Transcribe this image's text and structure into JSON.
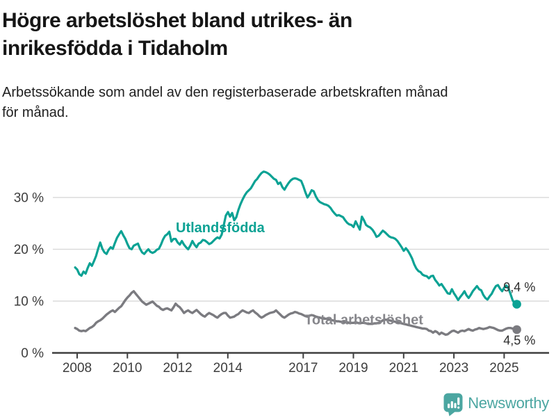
{
  "chart_data": {
    "type": "line",
    "title": "Högre arbetslöshet bland utrikes- än\ninrikesfödda i Tidaholm",
    "subtitle": "Arbetssökande som andel av den registerbaserade arbetskraften månad\nför månad.",
    "x_tick_years": [
      2008,
      2010,
      2012,
      2014,
      2017,
      2019,
      2021,
      2023,
      2025
    ],
    "y_ticks": [
      0,
      10,
      20,
      30
    ],
    "y_tick_suffix": " %",
    "ylim": [
      0,
      37.5
    ],
    "xlim": [
      2007.0,
      2026.8
    ],
    "grid": "horizontal-only",
    "legend": "inline-labels-on-lines",
    "colors": {
      "grid": "#DBDBDB",
      "axis": "#3F3F3F",
      "tick_text": "#3D3D3D",
      "value_text": "#2C2C2C"
    },
    "series": [
      {
        "name": "Utlandsfödda",
        "color": "#0BA294",
        "label_color": "#0BA294",
        "stroke_width": 3.2,
        "start_year": 2007.92,
        "points_per_year": 12,
        "end_value": 9.4,
        "name_label": {
          "year": 2011.93,
          "pct": 23.3
        },
        "value_label": {
          "text": "9,4 %",
          "year": 2024.97,
          "pct": 11.9
        },
        "values": [
          16.5,
          16.1,
          15.2,
          14.9,
          15.7,
          15.3,
          16.4,
          17.3,
          16.8,
          17.7,
          18.7,
          20.1,
          21.3,
          20.1,
          19.4,
          19.1,
          19.9,
          20.4,
          20.1,
          21.2,
          22.2,
          22.9,
          23.5,
          22.7,
          22.0,
          21.0,
          20.2,
          20.0,
          20.7,
          20.9,
          21.1,
          20.1,
          19.4,
          19.1,
          19.6,
          20.0,
          19.5,
          19.3,
          19.5,
          19.9,
          20.1,
          20.9,
          21.9,
          22.6,
          22.9,
          23.4,
          21.5,
          22.0,
          22.0,
          21.3,
          20.9,
          21.6,
          20.9,
          20.4,
          20.0,
          20.7,
          21.6,
          20.9,
          20.4,
          21.1,
          21.3,
          21.8,
          21.7,
          21.4,
          21.0,
          21.2,
          21.6,
          22.0,
          22.3,
          22.1,
          22.8,
          24.6,
          26.5,
          27.2,
          26.3,
          27.0,
          25.6,
          26.2,
          27.6,
          28.7,
          29.6,
          30.4,
          31.0,
          31.4,
          31.8,
          32.5,
          33.2,
          33.6,
          34.2,
          34.7,
          35.0,
          34.9,
          34.7,
          34.4,
          34.0,
          33.6,
          33.4,
          32.6,
          32.9,
          32.0,
          31.5,
          32.2,
          32.8,
          33.3,
          33.6,
          33.7,
          33.6,
          33.4,
          33.2,
          32.2,
          31.0,
          30.0,
          30.6,
          31.4,
          31.2,
          30.2,
          29.5,
          29.1,
          28.9,
          28.7,
          28.6,
          28.4,
          28.0,
          27.4,
          26.9,
          26.5,
          26.6,
          26.4,
          26.2,
          25.6,
          25.1,
          24.8,
          24.7,
          24.3,
          25.4,
          24.6,
          23.8,
          26.3,
          25.6,
          24.7,
          24.4,
          24.2,
          23.8,
          23.2,
          22.4,
          22.6,
          23.1,
          23.6,
          23.3,
          22.9,
          22.5,
          22.3,
          22.2,
          22.0,
          21.6,
          21.0,
          20.4,
          19.7,
          20.2,
          19.7,
          19.0,
          18.2,
          17.1,
          16.3,
          15.8,
          15.6,
          15.1,
          14.9,
          14.8,
          14.4,
          14.8,
          14.9,
          14.1,
          13.6,
          13.0,
          13.3,
          12.7,
          12.1,
          11.5,
          11.4,
          12.3,
          11.5,
          10.9,
          10.2,
          10.8,
          11.3,
          11.9,
          11.1,
          10.6,
          11.2,
          11.9,
          12.4,
          12.9,
          12.3,
          12.1,
          11.2,
          10.6,
          10.3,
          10.9,
          11.4,
          12.2,
          12.9,
          13.1,
          12.4,
          11.9,
          12.6,
          13.0,
          12.5,
          11.4,
          10.2,
          9.5,
          9.4
        ]
      },
      {
        "name": "Total arbetslöshet",
        "color": "#7B7B80",
        "label_color": "#86868B",
        "stroke_width": 3.4,
        "start_year": 2007.92,
        "points_per_year": 12,
        "end_value": 4.5,
        "name_label": {
          "year": 2017.05,
          "pct": 5.5
        },
        "value_label": {
          "text": "4,5 %",
          "year": 2024.97,
          "pct": 1.6
        },
        "values": [
          4.8,
          4.6,
          4.3,
          4.2,
          4.3,
          4.2,
          4.5,
          4.8,
          5.0,
          5.3,
          5.8,
          6.1,
          6.3,
          6.6,
          7.0,
          7.4,
          7.7,
          8.0,
          8.2,
          7.9,
          8.3,
          8.7,
          9.0,
          9.6,
          10.2,
          10.7,
          11.1,
          11.6,
          11.9,
          11.4,
          10.9,
          10.4,
          9.9,
          9.6,
          9.3,
          9.5,
          9.7,
          9.9,
          9.5,
          9.1,
          8.9,
          8.5,
          8.3,
          8.5,
          8.6,
          8.4,
          8.2,
          8.8,
          9.5,
          9.1,
          8.8,
          8.3,
          7.7,
          8.0,
          8.2,
          7.9,
          7.7,
          8.0,
          8.3,
          7.9,
          7.5,
          7.2,
          7.0,
          7.4,
          7.7,
          7.5,
          7.3,
          7.0,
          6.8,
          7.2,
          7.5,
          7.7,
          7.7,
          7.2,
          6.8,
          6.9,
          7.0,
          7.3,
          7.5,
          7.9,
          8.2,
          8.0,
          7.8,
          7.7,
          8.0,
          8.2,
          7.8,
          7.5,
          7.1,
          6.8,
          7.0,
          7.3,
          7.5,
          7.7,
          7.8,
          7.9,
          8.2,
          7.8,
          7.4,
          7.0,
          6.8,
          7.1,
          7.4,
          7.6,
          7.7,
          7.9,
          7.8,
          7.6,
          7.5,
          7.3,
          7.1,
          7.0,
          7.2,
          7.3,
          7.2,
          7.0,
          6.9,
          6.8,
          6.7,
          6.6,
          6.6,
          6.5,
          6.4,
          6.3,
          6.2,
          6.1,
          6.1,
          6.0,
          6.0,
          5.9,
          5.9,
          5.8,
          5.8,
          5.8,
          5.9,
          5.8,
          5.7,
          5.8,
          5.8,
          5.7,
          5.6,
          5.6,
          5.6,
          5.7,
          5.7,
          5.8,
          6.0,
          6.3,
          6.4,
          6.4,
          6.3,
          6.2,
          6.1,
          6.0,
          5.9,
          5.8,
          5.7,
          5.6,
          5.5,
          5.4,
          5.3,
          5.2,
          5.1,
          5.0,
          4.9,
          4.8,
          4.7,
          4.7,
          4.6,
          4.3,
          4.2,
          3.9,
          4.2,
          4.0,
          3.6,
          3.9,
          3.7,
          3.5,
          3.6,
          3.9,
          4.2,
          4.3,
          4.1,
          3.9,
          4.2,
          4.3,
          4.2,
          4.4,
          4.6,
          4.4,
          4.3,
          4.5,
          4.6,
          4.8,
          4.7,
          4.6,
          4.7,
          4.8,
          5.0,
          4.9,
          4.8,
          4.6,
          4.4,
          4.3,
          4.3,
          4.5,
          4.7,
          4.8,
          4.8,
          4.7,
          4.6,
          4.5
        ]
      }
    ]
  },
  "footer": {
    "brand": "Newsworthy",
    "logo_color": "#4BA6A1"
  }
}
